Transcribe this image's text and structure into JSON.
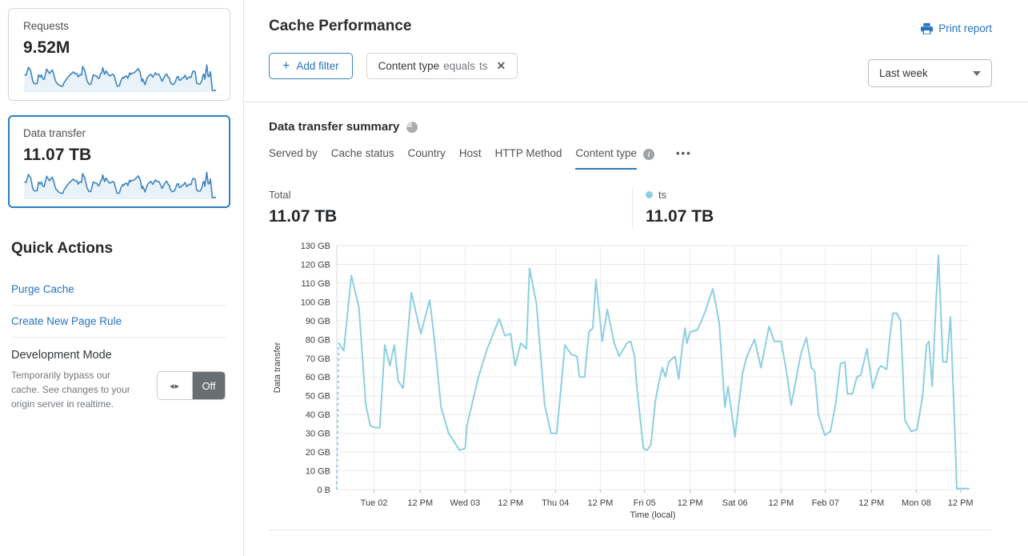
{
  "icons": {
    "plus": "+",
    "close": "✕",
    "toggle_arrows": "◂▸",
    "more": "•••",
    "info": "i"
  },
  "colors": {
    "accent_blue": "#2673BE",
    "chart_line": "#8DCFE0",
    "spark_stroke": "#3E84BD",
    "spark_fill": "#E9F2F9",
    "selected_card_border": "#2D7FBE",
    "active_tab_underline": "#2D7FAF",
    "toggle_dark": "#696E70"
  },
  "sidebar": {
    "cards": [
      {
        "label": "Requests",
        "value": "9.52M",
        "selected": false
      },
      {
        "label": "Data transfer",
        "value": "11.07 TB",
        "selected": true
      }
    ],
    "quick_actions": {
      "title": "Quick Actions",
      "links": [
        "Purge Cache",
        "Create New Page Rule"
      ],
      "dev_mode": {
        "title": "Development Mode",
        "description": "Temporarily bypass our cache. See changes to your origin server in realtime.",
        "state": "Off"
      }
    }
  },
  "header": {
    "title": "Cache Performance",
    "print_label": "Print report",
    "add_filter_label": "Add filter",
    "filter_chip": {
      "field": "Content type",
      "operator": "equals",
      "value": "ts"
    },
    "time_range": "Last week"
  },
  "summary": {
    "title": "Data transfer summary",
    "tabs": [
      {
        "label": "Served by",
        "active": false,
        "info": false
      },
      {
        "label": "Cache status",
        "active": false,
        "info": false
      },
      {
        "label": "Country",
        "active": false,
        "info": false
      },
      {
        "label": "Host",
        "active": false,
        "info": false
      },
      {
        "label": "HTTP Method",
        "active": false,
        "info": false
      },
      {
        "label": "Content type",
        "active": true,
        "info": true
      }
    ],
    "total": {
      "label": "Total",
      "value": "11.07 TB"
    },
    "series_legend": {
      "label": "ts",
      "value": "11.07 TB",
      "color": "#8DCFE0"
    }
  },
  "chart_data": {
    "type": "line",
    "title": "Data transfer summary",
    "series_name": "ts",
    "xlabel": "Time (local)",
    "ylabel": "Data transfer",
    "ylim_gb": [
      0,
      130
    ],
    "grid": true,
    "line_color": "#8DCFE0",
    "leading_dashed": true,
    "dash_from": [
      0,
      0
    ],
    "y_ticks": [
      {
        "gb": 0,
        "label": "0 B"
      },
      {
        "gb": 10,
        "label": "10 GB"
      },
      {
        "gb": 20,
        "label": "20 GB"
      },
      {
        "gb": 30,
        "label": "30 GB"
      },
      {
        "gb": 40,
        "label": "40 GB"
      },
      {
        "gb": 50,
        "label": "50 GB"
      },
      {
        "gb": 60,
        "label": "60 GB"
      },
      {
        "gb": 70,
        "label": "70 GB"
      },
      {
        "gb": 80,
        "label": "80 GB"
      },
      {
        "gb": 90,
        "label": "90 GB"
      },
      {
        "gb": 100,
        "label": "100 GB"
      },
      {
        "gb": 110,
        "label": "110 GB"
      },
      {
        "gb": 120,
        "label": "120 GB"
      },
      {
        "gb": 130,
        "label": "130 GB"
      }
    ],
    "x_ticks": [
      {
        "label": "Tue 02",
        "f": 0.059
      },
      {
        "label": "12 PM",
        "f": 0.132
      },
      {
        "label": "Wed 03",
        "f": 0.203
      },
      {
        "label": "12 PM",
        "f": 0.275
      },
      {
        "label": "Thu 04",
        "f": 0.346
      },
      {
        "label": "12 PM",
        "f": 0.417
      },
      {
        "label": "Fri 05",
        "f": 0.487
      },
      {
        "label": "12 PM",
        "f": 0.559
      },
      {
        "label": "Sat 06",
        "f": 0.63
      },
      {
        "label": "12 PM",
        "f": 0.703
      },
      {
        "label": "Feb 07",
        "f": 0.773
      },
      {
        "label": "12 PM",
        "f": 0.846
      },
      {
        "label": "Mon 08",
        "f": 0.917
      },
      {
        "label": "12 PM",
        "f": 0.987
      }
    ],
    "points": [
      [
        0.003,
        78
      ],
      [
        0.011,
        74
      ],
      [
        0.023,
        114
      ],
      [
        0.035,
        97
      ],
      [
        0.046,
        45
      ],
      [
        0.053,
        34
      ],
      [
        0.061,
        33
      ],
      [
        0.068,
        33
      ],
      [
        0.076,
        77
      ],
      [
        0.084,
        66
      ],
      [
        0.091,
        77
      ],
      [
        0.097,
        58
      ],
      [
        0.105,
        54
      ],
      [
        0.118,
        105
      ],
      [
        0.133,
        83
      ],
      [
        0.147,
        101
      ],
      [
        0.154,
        81
      ],
      [
        0.165,
        44
      ],
      [
        0.177,
        30
      ],
      [
        0.194,
        21
      ],
      [
        0.203,
        22
      ],
      [
        0.206,
        34
      ],
      [
        0.224,
        60
      ],
      [
        0.238,
        75
      ],
      [
        0.257,
        91
      ],
      [
        0.266,
        82
      ],
      [
        0.275,
        83
      ],
      [
        0.282,
        66
      ],
      [
        0.291,
        78
      ],
      [
        0.3,
        75
      ],
      [
        0.305,
        118
      ],
      [
        0.316,
        99
      ],
      [
        0.329,
        45
      ],
      [
        0.339,
        30
      ],
      [
        0.348,
        30
      ],
      [
        0.361,
        77
      ],
      [
        0.371,
        72
      ],
      [
        0.38,
        71
      ],
      [
        0.384,
        60
      ],
      [
        0.392,
        60
      ],
      [
        0.399,
        84
      ],
      [
        0.405,
        86
      ],
      [
        0.41,
        112
      ],
      [
        0.42,
        79
      ],
      [
        0.428,
        96
      ],
      [
        0.439,
        78
      ],
      [
        0.447,
        71
      ],
      [
        0.459,
        78
      ],
      [
        0.465,
        79
      ],
      [
        0.471,
        71
      ],
      [
        0.475,
        54
      ],
      [
        0.481,
        35
      ],
      [
        0.485,
        22
      ],
      [
        0.491,
        21
      ],
      [
        0.497,
        24
      ],
      [
        0.504,
        47
      ],
      [
        0.509,
        56
      ],
      [
        0.515,
        65
      ],
      [
        0.52,
        60
      ],
      [
        0.525,
        68
      ],
      [
        0.535,
        71
      ],
      [
        0.541,
        59
      ],
      [
        0.547,
        77
      ],
      [
        0.551,
        86
      ],
      [
        0.554,
        78
      ],
      [
        0.559,
        84
      ],
      [
        0.57,
        85
      ],
      [
        0.576,
        89
      ],
      [
        0.582,
        94
      ],
      [
        0.595,
        107
      ],
      [
        0.605,
        89
      ],
      [
        0.614,
        44
      ],
      [
        0.619,
        55
      ],
      [
        0.63,
        28
      ],
      [
        0.642,
        62
      ],
      [
        0.648,
        70
      ],
      [
        0.654,
        75
      ],
      [
        0.661,
        80
      ],
      [
        0.671,
        65
      ],
      [
        0.684,
        87
      ],
      [
        0.692,
        79
      ],
      [
        0.703,
        79
      ],
      [
        0.711,
        64
      ],
      [
        0.719,
        45
      ],
      [
        0.734,
        72
      ],
      [
        0.743,
        81
      ],
      [
        0.751,
        65
      ],
      [
        0.756,
        63
      ],
      [
        0.762,
        40
      ],
      [
        0.772,
        29
      ],
      [
        0.781,
        31
      ],
      [
        0.789,
        45
      ],
      [
        0.797,
        67
      ],
      [
        0.804,
        68
      ],
      [
        0.808,
        51
      ],
      [
        0.816,
        51
      ],
      [
        0.823,
        60
      ],
      [
        0.829,
        61
      ],
      [
        0.839,
        75
      ],
      [
        0.848,
        54
      ],
      [
        0.857,
        64
      ],
      [
        0.861,
        66
      ],
      [
        0.87,
        64
      ],
      [
        0.876,
        84
      ],
      [
        0.88,
        94
      ],
      [
        0.886,
        94
      ],
      [
        0.892,
        90
      ],
      [
        0.899,
        37
      ],
      [
        0.909,
        31
      ],
      [
        0.918,
        32
      ],
      [
        0.927,
        50
      ],
      [
        0.933,
        77
      ],
      [
        0.937,
        79
      ],
      [
        0.942,
        55
      ],
      [
        0.947,
        91
      ],
      [
        0.952,
        125
      ],
      [
        0.959,
        68
      ],
      [
        0.965,
        68
      ],
      [
        0.971,
        92
      ],
      [
        0.978,
        31
      ],
      [
        0.981,
        0.5
      ],
      [
        1.0,
        0.5
      ]
    ]
  }
}
